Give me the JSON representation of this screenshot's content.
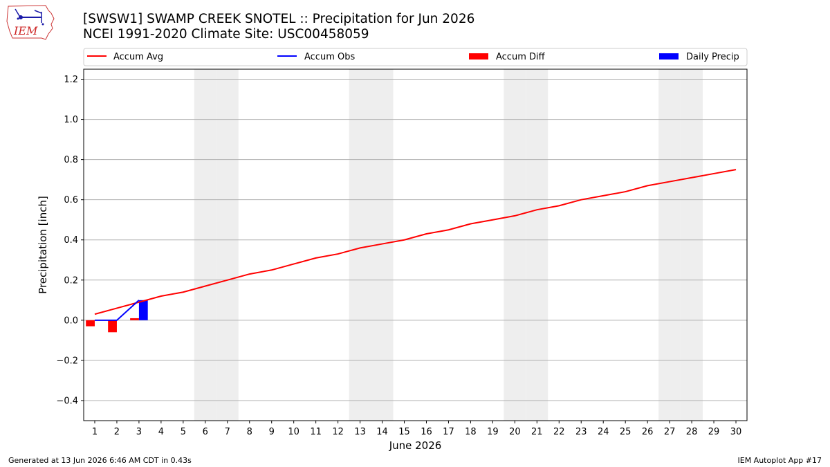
{
  "header": {
    "title_line1": "[SWSW1] SWAMP CREEK SNOTEL :: Precipitation for Jun 2026",
    "title_line2": "NCEI 1991-2020 Climate Site: USC00458059",
    "logo_text": "IEM"
  },
  "footer": {
    "generated": "Generated at 13 Jun 2026 6:46 AM CDT in 0.43s",
    "app": "IEM Autoplot App #17"
  },
  "colors": {
    "accum_avg": "#ff0000",
    "accum_obs": "#0000ff",
    "accum_diff": "#ff0000",
    "daily_precip": "#0000ff",
    "weekend_shade": "#eeeeee",
    "grid": "#b0b0b0"
  },
  "chart_data": {
    "type": "line",
    "title": "[SWSW1] SWAMP CREEK SNOTEL :: Precipitation for Jun 2026",
    "xlabel": "June 2026",
    "ylabel": "Precipitation [inch]",
    "x": [
      1,
      2,
      3,
      4,
      5,
      6,
      7,
      8,
      9,
      10,
      11,
      12,
      13,
      14,
      15,
      16,
      17,
      18,
      19,
      20,
      21,
      22,
      23,
      24,
      25,
      26,
      27,
      28,
      29,
      30
    ],
    "xlim": [
      0.5,
      30.5
    ],
    "ylim": [
      -0.5,
      1.25
    ],
    "yticks": [
      -0.4,
      -0.2,
      0.0,
      0.2,
      0.4,
      0.6,
      0.8,
      1.0,
      1.2
    ],
    "ytick_labels": [
      "−0.4",
      "−0.2",
      "0.0",
      "0.2",
      "0.4",
      "0.6",
      "0.8",
      "1.0",
      "1.2"
    ],
    "grid": true,
    "legend_position": "top",
    "legend": [
      {
        "label": "Accum Avg",
        "kind": "line",
        "color": "#ff0000"
      },
      {
        "label": "Accum Obs",
        "kind": "line",
        "color": "#0000ff"
      },
      {
        "label": "Accum Diff",
        "kind": "bar",
        "color": "#ff0000"
      },
      {
        "label": "Daily Precip",
        "kind": "bar",
        "color": "#0000ff"
      }
    ],
    "weekend_days": [
      6,
      7,
      13,
      14,
      20,
      21,
      27,
      28
    ],
    "series": [
      {
        "name": "Accum Avg",
        "type": "line",
        "color": "#ff0000",
        "values": [
          0.03,
          0.06,
          0.09,
          0.12,
          0.14,
          0.17,
          0.2,
          0.23,
          0.25,
          0.28,
          0.31,
          0.33,
          0.36,
          0.38,
          0.4,
          0.43,
          0.45,
          0.48,
          0.5,
          0.52,
          0.55,
          0.57,
          0.6,
          0.62,
          0.64,
          0.67,
          0.69,
          0.71,
          0.73,
          0.75
        ]
      },
      {
        "name": "Accum Obs",
        "type": "line",
        "color": "#0000ff",
        "x": [
          1,
          2,
          3
        ],
        "values": [
          0.0,
          0.0,
          0.1
        ]
      },
      {
        "name": "Accum Diff",
        "type": "bar",
        "color": "#ff0000",
        "x": [
          1,
          2,
          3
        ],
        "values": [
          -0.03,
          -0.06,
          0.01
        ]
      },
      {
        "name": "Daily Precip",
        "type": "bar",
        "color": "#0000ff",
        "x": [
          1,
          2,
          3
        ],
        "values": [
          0.0,
          0.0,
          0.1
        ]
      }
    ]
  }
}
